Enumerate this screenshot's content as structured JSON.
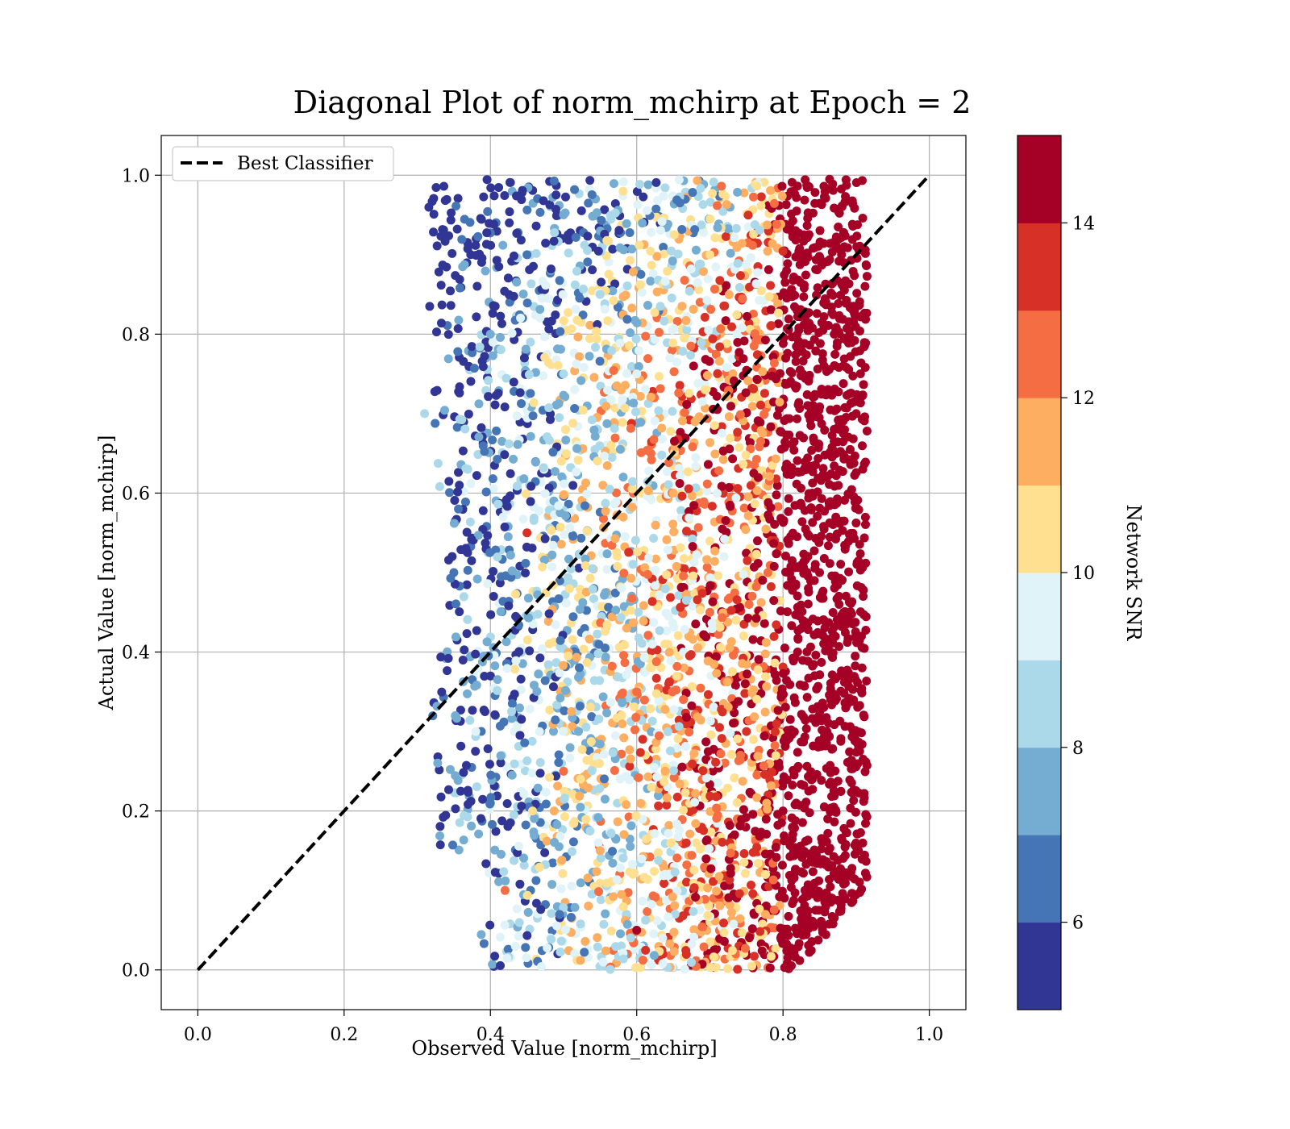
{
  "chart_data": {
    "type": "scatter",
    "title": "Diagonal Plot of norm_mchirp at Epoch = 2",
    "xlabel": "Observed Value [norm_mchirp]",
    "ylabel": "Actual Value [norm_mchirp]",
    "xlim": [
      -0.05,
      1.05
    ],
    "ylim": [
      -0.05,
      1.05
    ],
    "xticks": [
      "0.0",
      "0.2",
      "0.4",
      "0.6",
      "0.8",
      "1.0"
    ],
    "yticks": [
      "0.0",
      "0.2",
      "0.4",
      "0.6",
      "0.8",
      "1.0"
    ],
    "grid": true,
    "legend": {
      "position": "top-left",
      "entries": [
        {
          "label": "Best Classifier",
          "style": "dashed",
          "color": "#000000"
        }
      ]
    },
    "reference_line": {
      "x": [
        0.0,
        1.0
      ],
      "y": [
        0.0,
        1.0
      ]
    },
    "colorbar": {
      "label": "Network SNR",
      "range": [
        5,
        15
      ],
      "ticks": [
        "6",
        "8",
        "10",
        "12",
        "14"
      ],
      "colors": [
        "#313695",
        "#4575b4",
        "#74add1",
        "#abd9e9",
        "#e0f3f8",
        "#ffffbf",
        "#fee090",
        "#fdae61",
        "#f46d43",
        "#d73027",
        "#a50026"
      ]
    },
    "series": [
      {
        "points_summary": "dense scatter of predictions; observed mostly 0.3-0.92, actual 0.0-1.0; high SNR (>14) concentrated at observed 0.78-0.92",
        "x": [
          0.31,
          0.35,
          0.38,
          0.42,
          0.45,
          0.5,
          0.55,
          0.6,
          0.65,
          0.7,
          0.75,
          0.8,
          0.85,
          0.9,
          0.88,
          0.83,
          0.86,
          0.84,
          0.87,
          0.82,
          0.45,
          0.5,
          0.55,
          0.6,
          0.7,
          0.4,
          0.5,
          0.6
        ],
        "y": [
          0.7,
          0.5,
          0.3,
          0.1,
          0.9,
          0.95,
          0.85,
          0.75,
          0.6,
          0.45,
          0.3,
          0.2,
          0.5,
          0.7,
          0.9,
          0.1,
          0.3,
          0.6,
          0.8,
          0.4,
          0.55,
          0.25,
          0.15,
          0.05,
          0.9,
          0.8,
          0.75,
          0.35
        ],
        "snr": [
          8,
          6,
          9,
          12,
          6,
          7,
          8,
          9,
          11,
          12,
          13,
          15,
          15,
          15,
          15,
          15,
          15,
          15,
          15,
          14,
          13,
          12,
          11,
          14,
          10,
          7,
          8,
          12
        ]
      }
    ]
  }
}
